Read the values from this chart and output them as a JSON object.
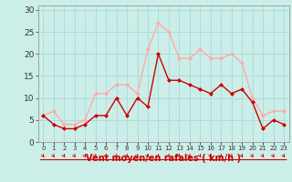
{
  "hours": [
    0,
    1,
    2,
    3,
    4,
    5,
    6,
    7,
    8,
    9,
    10,
    11,
    12,
    13,
    14,
    15,
    16,
    17,
    18,
    19,
    20,
    21,
    22,
    23
  ],
  "wind_avg": [
    6,
    4,
    3,
    3,
    4,
    6,
    6,
    10,
    6,
    10,
    8,
    20,
    14,
    14,
    13,
    12,
    11,
    13,
    11,
    12,
    9,
    3,
    5,
    4
  ],
  "wind_gust": [
    6,
    7,
    4,
    4,
    5,
    11,
    11,
    13,
    13,
    11,
    21,
    27,
    25,
    19,
    19,
    21,
    19,
    19,
    20,
    18,
    10,
    6,
    7,
    7
  ],
  "avg_color": "#cc0000",
  "gust_color": "#ffaaaa",
  "bg_color": "#cceee8",
  "grid_color": "#aadddd",
  "xlabel": "Vent moyen/en rafales ( km/h )",
  "xlabel_color": "#cc0000",
  "yticks": [
    0,
    5,
    10,
    15,
    20,
    25,
    30
  ],
  "ylim": [
    0,
    31
  ],
  "xlim": [
    -0.5,
    23.5
  ],
  "markersize": 2.5,
  "linewidth": 1.0
}
